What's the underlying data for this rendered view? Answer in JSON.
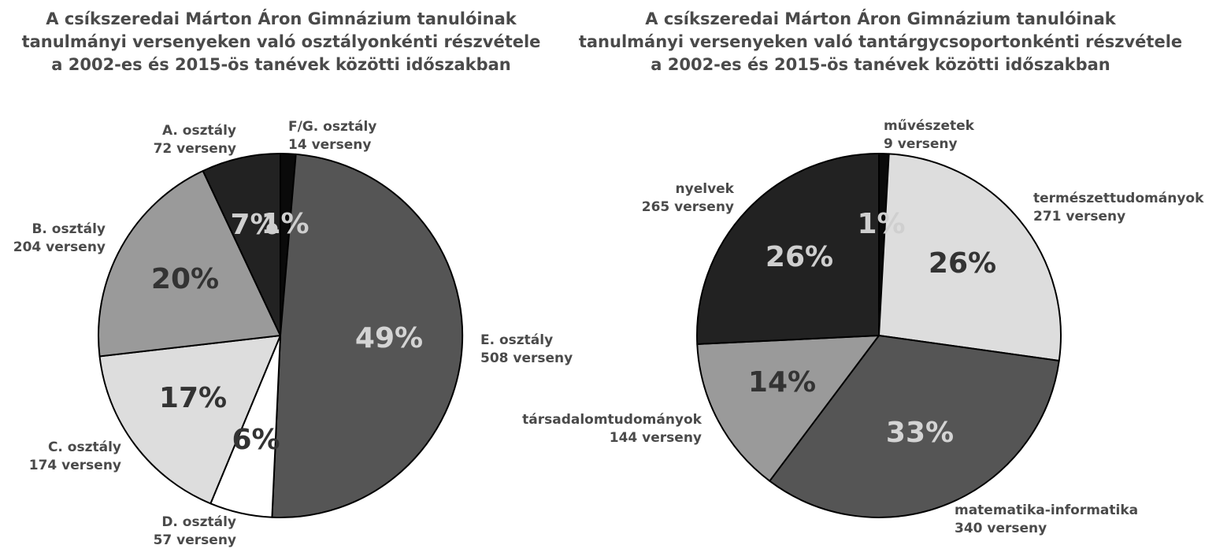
{
  "chart_data": [
    {
      "type": "pie",
      "title_lines": [
        "A csíkszeredai Márton Áron Gimnázium tanulóinak",
        "tanulmányi versenyeken való osztályonkénti részvétele",
        "a 2002-es és 2015-ös tanévek közötti időszakban"
      ],
      "slices": [
        {
          "name": "F/G. osztály",
          "value": 14,
          "value_text": "14 verseny",
          "percent": "1%",
          "color": "#0a0a0a",
          "pct_color": "#cfcfcf"
        },
        {
          "name": "E. osztály",
          "value": 508,
          "value_text": "508 verseny",
          "percent": "49%",
          "color": "#555555",
          "pct_color": "#d4d4d4"
        },
        {
          "name": "D. osztály",
          "value": 57,
          "value_text": "57 verseny",
          "percent": "6%",
          "color": "#ffffff",
          "pct_color": "#333333"
        },
        {
          "name": "C. osztály",
          "value": 174,
          "value_text": "174 verseny",
          "percent": "17%",
          "color": "#dddddd",
          "pct_color": "#333333"
        },
        {
          "name": "B. osztály",
          "value": 204,
          "value_text": "204 verseny",
          "percent": "20%",
          "color": "#9a9a9a",
          "pct_color": "#333333"
        },
        {
          "name": "A. osztály",
          "value": 72,
          "value_text": "72 verseny",
          "percent": "7%",
          "color": "#222222",
          "pct_color": "#cfcfcf"
        }
      ]
    },
    {
      "type": "pie",
      "title_lines": [
        "A csíkszeredai Márton Áron Gimnázium tanulóinak",
        "tanulmányi versenyeken való tantárgycsoportonkénti részvétele",
        "a 2002-es és 2015-ös tanévek közötti időszakban"
      ],
      "slices": [
        {
          "name": "művészetek",
          "value": 9,
          "value_text": "9 verseny",
          "percent": "1%",
          "color": "#0a0a0a",
          "pct_color": "#cfcfcf"
        },
        {
          "name": "természettudományok",
          "value": 271,
          "value_text": "271 verseny",
          "percent": "26%",
          "color": "#dddddd",
          "pct_color": "#333333"
        },
        {
          "name": "matematika-informatika",
          "value": 340,
          "value_text": "340 verseny",
          "percent": "33%",
          "color": "#555555",
          "pct_color": "#d4d4d4"
        },
        {
          "name": "társadalomtudományok",
          "value": 144,
          "value_text": "144 verseny",
          "percent": "14%",
          "color": "#9a9a9a",
          "pct_color": "#333333"
        },
        {
          "name": "nyelvek",
          "value": 265,
          "value_text": "265 verseny",
          "percent": "26%",
          "color": "#222222",
          "pct_color": "#cfcfcf"
        }
      ]
    }
  ]
}
